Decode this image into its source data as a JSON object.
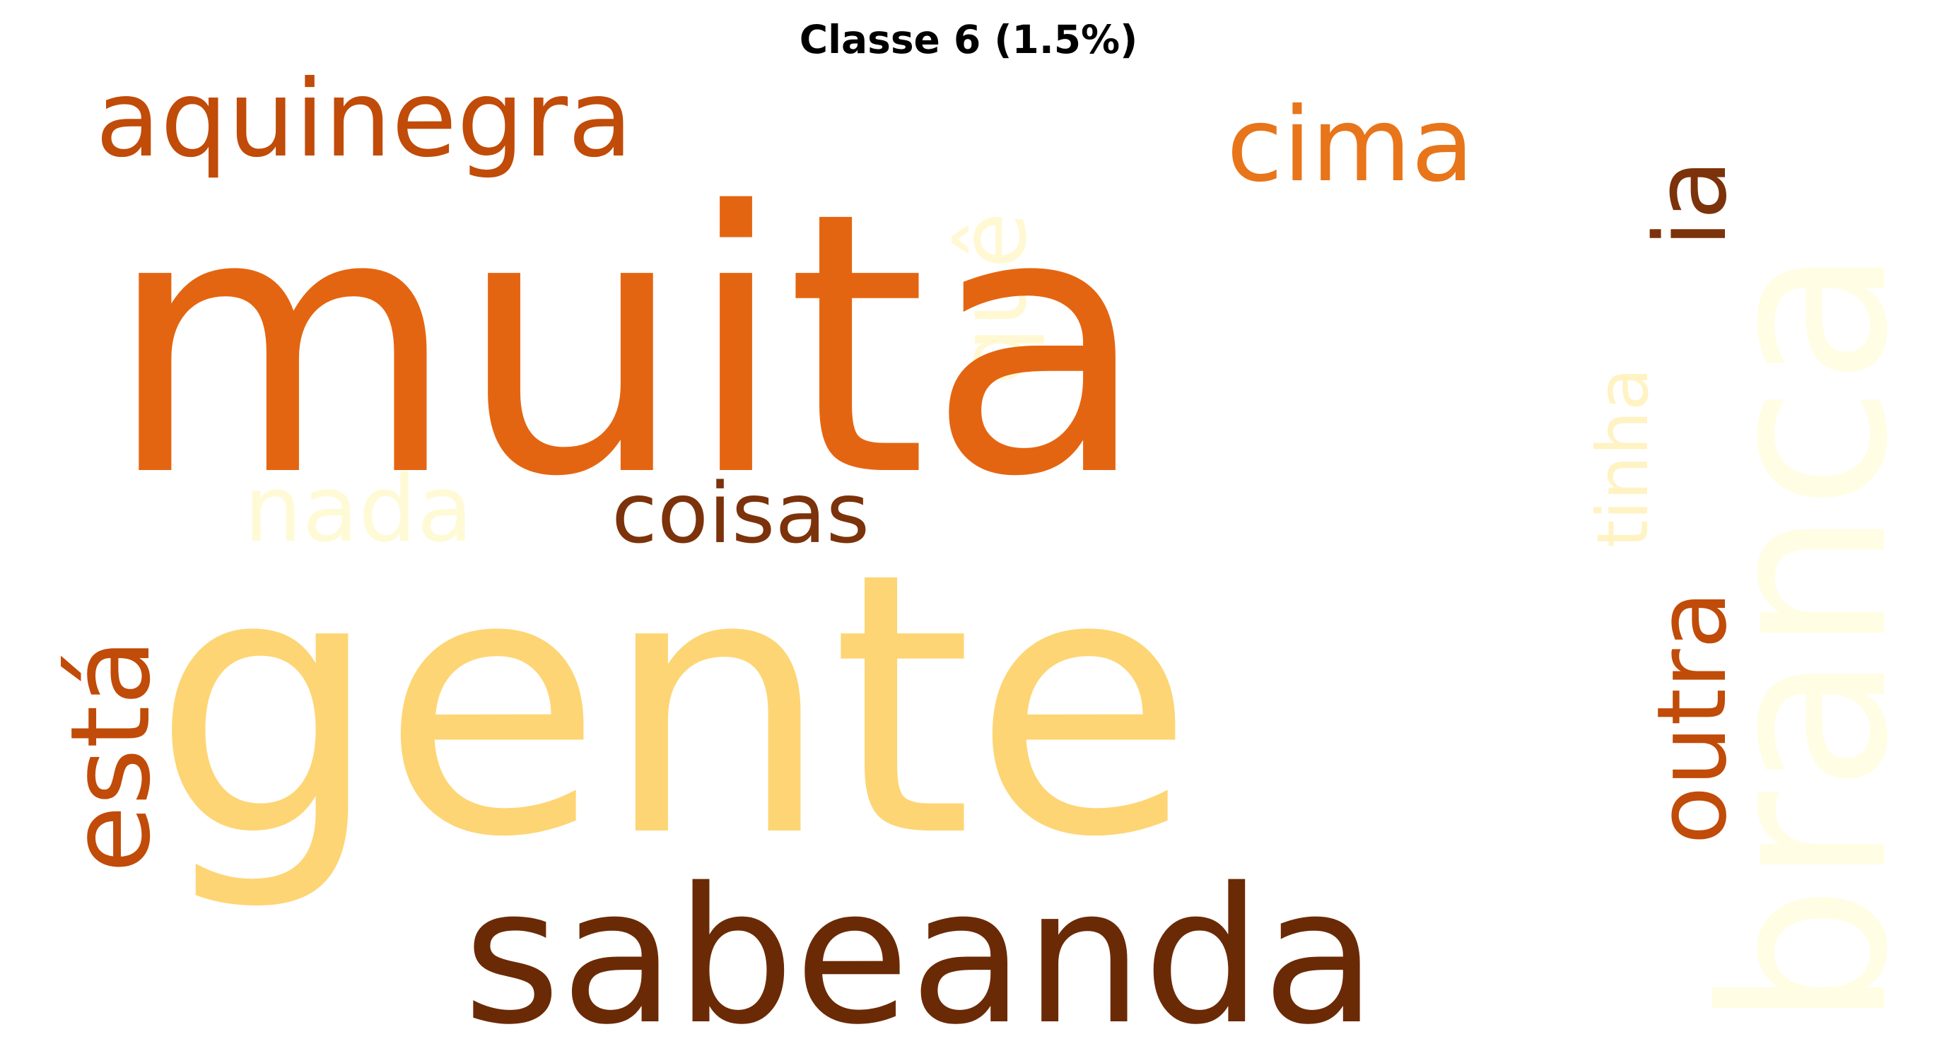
{
  "title": "Classe 6 (1.5%)",
  "words": [
    {
      "text": "muita",
      "color": "#e46511"
    },
    {
      "text": "gente",
      "color": "#fdd574"
    },
    {
      "text": "sabeanda",
      "color": "#6b2a06"
    },
    {
      "text": "branca",
      "color": "#fffde3"
    },
    {
      "text": "outra",
      "color": "#c14b08"
    },
    {
      "text": "está",
      "color": "#c14b08"
    },
    {
      "text": "aquinegra",
      "color": "#c14b08"
    },
    {
      "text": "cima",
      "color": "#e8751a"
    },
    {
      "text": "ia",
      "color": "#7c320a"
    },
    {
      "text": "quê",
      "color": "#fff8d3"
    },
    {
      "text": "tinha",
      "color": "#fff3c4"
    },
    {
      "text": "nada",
      "color": "#fffad6"
    },
    {
      "text": "coisas",
      "color": "#7c320a"
    }
  ]
}
